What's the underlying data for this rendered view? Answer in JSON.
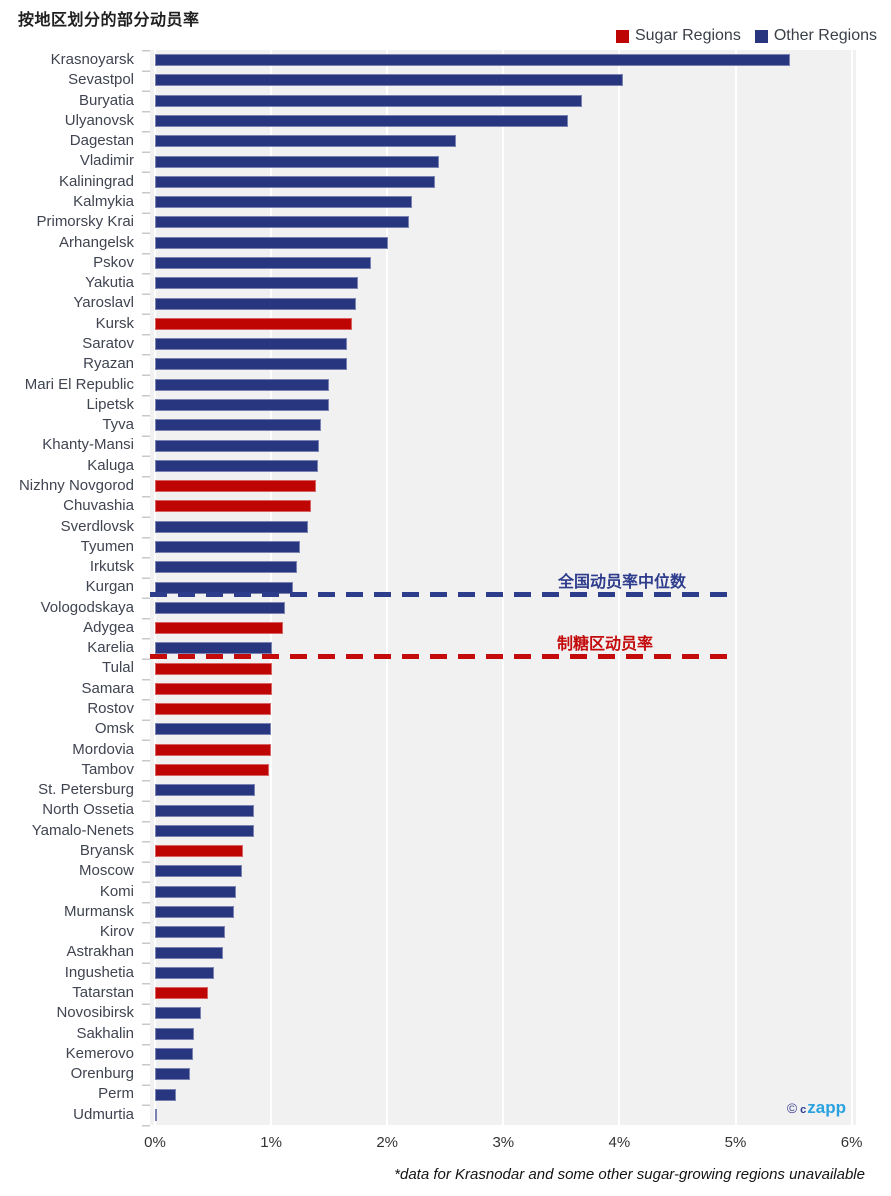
{
  "title": "按地区划分的部分动员率",
  "legend": [
    {
      "label": "Sugar Regions",
      "color": "#bf0404"
    },
    {
      "label": "Other Regions",
      "color": "#283680"
    }
  ],
  "annotations": {
    "national_median": {
      "label": "全国动员率中位数",
      "color": "#2e3c8c",
      "line_end_pct": 5.0,
      "between_rows": [
        "Kurgan",
        "Vologodskaya"
      ]
    },
    "sugar_region": {
      "label": "制糖区动员率",
      "color": "#c40b0b",
      "line_end_pct": 5.0,
      "between_rows": [
        "Karelia",
        "Tulal"
      ]
    }
  },
  "x_axis": {
    "ticks": [
      "0%",
      "1%",
      "2%",
      "3%",
      "4%",
      "5%",
      "6%"
    ],
    "min": 0,
    "max": 6
  },
  "footnote": "*data for Krasnodar and some other sugar-growing regions unavailable",
  "watermark": {
    "copyright": "©",
    "prefix": "c",
    "brand": "zapp"
  },
  "chart_data": {
    "type": "bar",
    "orientation": "horizontal",
    "unit": "%",
    "xlim": [
      0,
      6
    ],
    "grid": true,
    "legend_position": "top-right",
    "series_colors": {
      "sugar": "#bf0404",
      "other": "#283680"
    },
    "regions": [
      {
        "name": "Krasnoyarsk",
        "value": 5.47,
        "group": "other"
      },
      {
        "name": "Sevastpol",
        "value": 4.03,
        "group": "other"
      },
      {
        "name": "Buryatia",
        "value": 3.68,
        "group": "other"
      },
      {
        "name": "Ulyanovsk",
        "value": 3.56,
        "group": "other"
      },
      {
        "name": "Dagestan",
        "value": 2.59,
        "group": "other"
      },
      {
        "name": "Vladimir",
        "value": 2.45,
        "group": "other"
      },
      {
        "name": "Kaliningrad",
        "value": 2.41,
        "group": "other"
      },
      {
        "name": "Kalmykia",
        "value": 2.21,
        "group": "other"
      },
      {
        "name": "Primorsky Krai",
        "value": 2.19,
        "group": "other"
      },
      {
        "name": "Arhangelsk",
        "value": 2.01,
        "group": "other"
      },
      {
        "name": "Pskov",
        "value": 1.86,
        "group": "other"
      },
      {
        "name": "Yakutia",
        "value": 1.75,
        "group": "other"
      },
      {
        "name": "Yaroslavl",
        "value": 1.73,
        "group": "other"
      },
      {
        "name": "Kursk",
        "value": 1.7,
        "group": "sugar"
      },
      {
        "name": "Saratov",
        "value": 1.65,
        "group": "other"
      },
      {
        "name": "Ryazan",
        "value": 1.65,
        "group": "other"
      },
      {
        "name": "Mari El Republic",
        "value": 1.5,
        "group": "other"
      },
      {
        "name": "Lipetsk",
        "value": 1.5,
        "group": "other"
      },
      {
        "name": "Tyva",
        "value": 1.43,
        "group": "other"
      },
      {
        "name": "Khanty-Mansi",
        "value": 1.41,
        "group": "other"
      },
      {
        "name": "Kaluga",
        "value": 1.4,
        "group": "other"
      },
      {
        "name": "Nizhny Novgorod",
        "value": 1.39,
        "group": "sugar"
      },
      {
        "name": "Chuvashia",
        "value": 1.34,
        "group": "sugar"
      },
      {
        "name": "Sverdlovsk",
        "value": 1.32,
        "group": "other"
      },
      {
        "name": "Tyumen",
        "value": 1.25,
        "group": "other"
      },
      {
        "name": "Irkutsk",
        "value": 1.22,
        "group": "other"
      },
      {
        "name": "Kurgan",
        "value": 1.19,
        "group": "other"
      },
      {
        "name": "Vologodskaya",
        "value": 1.12,
        "group": "other"
      },
      {
        "name": "Adygea",
        "value": 1.1,
        "group": "sugar"
      },
      {
        "name": "Karelia",
        "value": 1.01,
        "group": "other"
      },
      {
        "name": "Tulal",
        "value": 1.01,
        "group": "sugar"
      },
      {
        "name": "Samara",
        "value": 1.01,
        "group": "sugar"
      },
      {
        "name": "Rostov",
        "value": 1.0,
        "group": "sugar"
      },
      {
        "name": "Omsk",
        "value": 1.0,
        "group": "other"
      },
      {
        "name": "Mordovia",
        "value": 1.0,
        "group": "sugar"
      },
      {
        "name": "Tambov",
        "value": 0.98,
        "group": "sugar"
      },
      {
        "name": "St. Petersburg",
        "value": 0.86,
        "group": "other"
      },
      {
        "name": "North Ossetia",
        "value": 0.85,
        "group": "other"
      },
      {
        "name": "Yamalo-Nenets",
        "value": 0.85,
        "group": "other"
      },
      {
        "name": "Bryansk",
        "value": 0.76,
        "group": "sugar"
      },
      {
        "name": "Moscow",
        "value": 0.75,
        "group": "other"
      },
      {
        "name": "Komi",
        "value": 0.7,
        "group": "other"
      },
      {
        "name": "Murmansk",
        "value": 0.68,
        "group": "other"
      },
      {
        "name": "Kirov",
        "value": 0.6,
        "group": "other"
      },
      {
        "name": "Astrakhan",
        "value": 0.59,
        "group": "other"
      },
      {
        "name": "Ingushetia",
        "value": 0.51,
        "group": "other"
      },
      {
        "name": "Tatarstan",
        "value": 0.46,
        "group": "sugar"
      },
      {
        "name": "Novosibirsk",
        "value": 0.4,
        "group": "other"
      },
      {
        "name": "Sakhalin",
        "value": 0.34,
        "group": "other"
      },
      {
        "name": "Kemerovo",
        "value": 0.33,
        "group": "other"
      },
      {
        "name": "Orenburg",
        "value": 0.3,
        "group": "other"
      },
      {
        "name": "Perm",
        "value": 0.18,
        "group": "other"
      },
      {
        "name": "Udmurtia",
        "value": 0.02,
        "group": "other"
      }
    ]
  }
}
